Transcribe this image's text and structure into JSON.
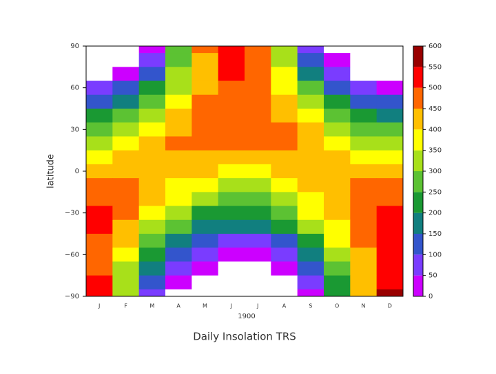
{
  "chart_data": {
    "type": "contour",
    "title": "Daily Insolation TRS",
    "x_label": "1900",
    "y_label": "latitude",
    "categories": [
      "J",
      "F",
      "M",
      "A",
      "M",
      "J",
      "J",
      "A",
      "S",
      "O",
      "N",
      "D"
    ],
    "y": [
      90,
      80,
      70,
      60,
      50,
      40,
      30,
      20,
      10,
      0,
      -10,
      -20,
      -30,
      -40,
      -50,
      -60,
      -70,
      -80,
      -90
    ],
    "values": [
      [
        0,
        0,
        20,
        250,
        450,
        525,
        490,
        330,
        90,
        0,
        0,
        0
      ],
      [
        0,
        0,
        80,
        260,
        440,
        515,
        480,
        330,
        140,
        15,
        0,
        0
      ],
      [
        0,
        30,
        140,
        300,
        430,
        500,
        470,
        350,
        190,
        60,
        0,
        0
      ],
      [
        50,
        110,
        210,
        330,
        440,
        490,
        470,
        380,
        250,
        130,
        60,
        30
      ],
      [
        120,
        190,
        280,
        380,
        460,
        490,
        480,
        410,
        310,
        210,
        130,
        100
      ],
      [
        200,
        260,
        340,
        420,
        470,
        490,
        480,
        440,
        360,
        280,
        210,
        180
      ],
      [
        270,
        330,
        390,
        440,
        470,
        480,
        480,
        450,
        400,
        340,
        280,
        250
      ],
      [
        340,
        380,
        420,
        450,
        460,
        460,
        460,
        450,
        420,
        380,
        340,
        320
      ],
      [
        390,
        420,
        440,
        440,
        440,
        430,
        430,
        440,
        430,
        420,
        390,
        370
      ],
      [
        430,
        440,
        440,
        420,
        400,
        390,
        390,
        410,
        430,
        430,
        430,
        430
      ],
      [
        460,
        450,
        430,
        390,
        350,
        330,
        340,
        370,
        410,
        440,
        460,
        460
      ],
      [
        490,
        460,
        410,
        350,
        300,
        280,
        290,
        330,
        390,
        440,
        480,
        490
      ],
      [
        500,
        450,
        380,
        300,
        240,
        210,
        220,
        270,
        350,
        420,
        480,
        510
      ],
      [
        500,
        430,
        340,
        250,
        180,
        150,
        160,
        210,
        300,
        390,
        470,
        510
      ],
      [
        490,
        400,
        290,
        190,
        110,
        80,
        90,
        140,
        240,
        350,
        450,
        500
      ],
      [
        480,
        360,
        230,
        120,
        50,
        20,
        30,
        80,
        180,
        310,
        430,
        500
      ],
      [
        480,
        320,
        170,
        60,
        5,
        0,
        0,
        20,
        120,
        270,
        420,
        510
      ],
      [
        500,
        300,
        110,
        10,
        0,
        0,
        0,
        0,
        60,
        240,
        430,
        540
      ],
      [
        510,
        300,
        60,
        0,
        0,
        0,
        0,
        0,
        20,
        230,
        440,
        560
      ]
    ],
    "ylim": [
      -90,
      90
    ],
    "yticks": [
      90,
      60,
      30,
      0,
      {
        "value": -30,
        "label": "−30"
      },
      {
        "value": -60,
        "label": "−60"
      },
      {
        "value": -90,
        "label": "−90"
      }
    ],
    "levels": [
      0,
      50,
      100,
      150,
      200,
      250,
      300,
      350,
      400,
      450,
      500,
      550,
      600
    ],
    "colors": [
      "#cc00ff",
      "#7a3cff",
      "#3355cc",
      "#117f7f",
      "#1a9933",
      "#5cc233",
      "#a8e01a",
      "#ffff00",
      "#ffbf00",
      "#ff6600",
      "#ff0000",
      "#990000"
    ]
  }
}
